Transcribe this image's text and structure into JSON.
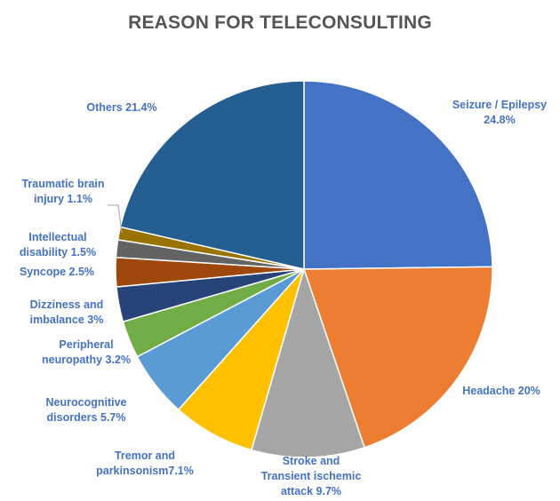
{
  "chart_data": {
    "type": "pie",
    "title": "REASON FOR TELECONSULTING",
    "label_color": "#4472C4",
    "slices": [
      {
        "label": "Seizure / Epilepsy",
        "value": 24.8,
        "label_lines": [
          "Seizure / Epilepsy",
          "24.8%"
        ],
        "color": "#4472C4"
      },
      {
        "label": "Headache",
        "value": 20,
        "label_lines": [
          "Headache 20%"
        ],
        "color": "#ED7D31"
      },
      {
        "label": "Stroke and Transient ischemic attack",
        "value": 9.7,
        "label_lines": [
          "Stroke and",
          "Transient ischemic",
          "attack 9.7%"
        ],
        "color": "#A5A5A5"
      },
      {
        "label": "Tremor and parkinsonism",
        "value": 7.1,
        "label_lines": [
          "Tremor and",
          "parkinsonism7.1%"
        ],
        "color": "#FFC000"
      },
      {
        "label": "Neurocognitive disorders",
        "value": 5.7,
        "label_lines": [
          "Neurocognitive",
          "disorders 5.7%"
        ],
        "color": "#5B9BD5"
      },
      {
        "label": "Peripheral neuropathy",
        "value": 3.2,
        "label_lines": [
          "Peripheral",
          "neuropathy 3.2%"
        ],
        "color": "#70AD47"
      },
      {
        "label": "Dizziness and imbalance",
        "value": 3,
        "label_lines": [
          "Dizziness and",
          "imbalance 3%"
        ],
        "color": "#264478"
      },
      {
        "label": "Syncope",
        "value": 2.5,
        "label_lines": [
          "Syncope 2.5%"
        ],
        "color": "#9E480E"
      },
      {
        "label": "Intellectual disability",
        "value": 1.5,
        "label_lines": [
          "Intellectual",
          "disability 1.5%"
        ],
        "color": "#636363"
      },
      {
        "label": "Traumatic brain injury",
        "value": 1.1,
        "label_lines": [
          "Traumatic brain",
          "injury 1.1%"
        ],
        "color": "#997300"
      },
      {
        "label": "Others",
        "value": 21.4,
        "label_lines": [
          "Others 21.4%"
        ],
        "color": "#255E91"
      }
    ]
  }
}
